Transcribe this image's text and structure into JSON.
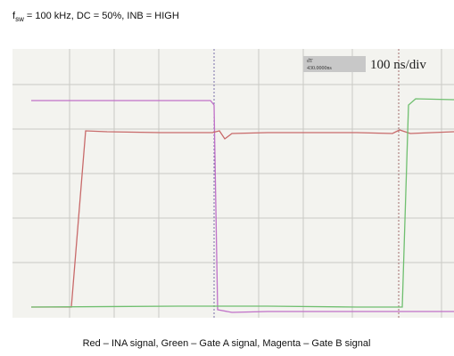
{
  "header": {
    "title_symbol": "f",
    "title_subscript": "sw",
    "title_rest": " = 100 kHz, DC = 50%, INB = HIGH"
  },
  "scope": {
    "cursor_label": "dT",
    "cursor_value": "430.0000ns",
    "timebase": "100 ns/div"
  },
  "caption": "Red – INA signal, Green – Gate A signal, Magenta – Gate B signal"
}
